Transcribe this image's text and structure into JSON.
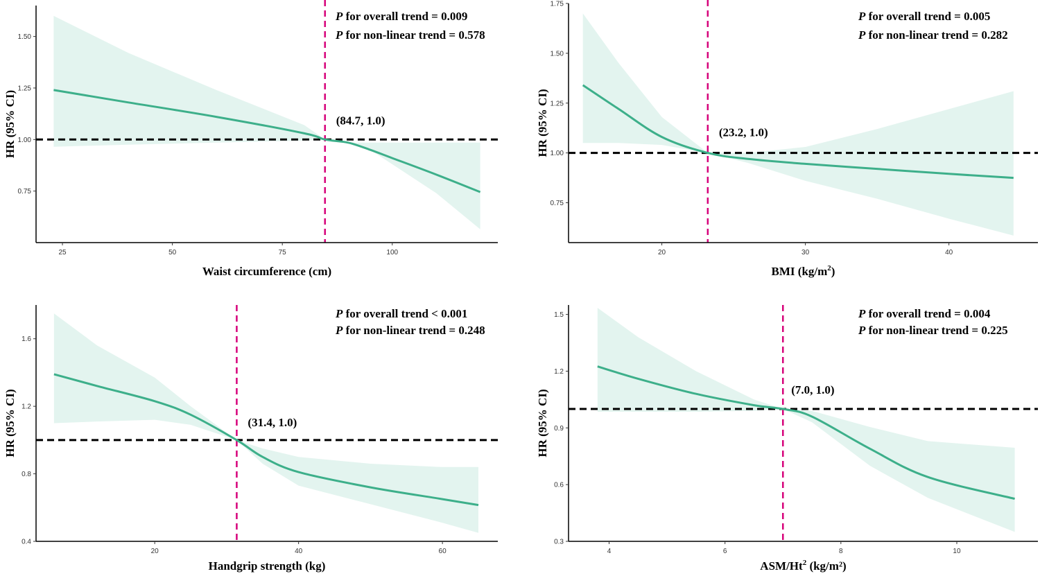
{
  "colors": {
    "curve": "#3daf8a",
    "band": "#e3f4ef",
    "reference": "#000000",
    "knot": "#d6007a"
  },
  "chart_data": [
    {
      "type": "line",
      "xlabel": "Waist circumference (cm)",
      "xsup": "",
      "xsuffix": "",
      "ylabel": "HR (95% CI)",
      "xlim": [
        19,
        124
      ],
      "ylim": [
        0.5,
        1.65
      ],
      "xticks": [
        25,
        50,
        75,
        100
      ],
      "yticks": [
        0.75,
        1.0,
        1.25,
        1.5
      ],
      "yticklabels": [
        "0.75",
        "1.00",
        "1.25",
        "1.50"
      ],
      "reference_y": 1.0,
      "knot_x": 84.7,
      "annotation": "(84.7, 1.0)",
      "p_overall": "for overall trend = 0.009",
      "p_nonlinear": "for non-linear trend = 0.578",
      "series": [
        {
          "name": "HR",
          "x": [
            23,
            40,
            60,
            80,
            84.7,
            90,
            95,
            100,
            110,
            120
          ],
          "values": [
            1.24,
            1.18,
            1.11,
            1.03,
            1.0,
            0.985,
            0.95,
            0.91,
            0.83,
            0.745
          ]
        },
        {
          "name": "Lower CI",
          "x": [
            23,
            40,
            60,
            80,
            84.7,
            90,
            95,
            100,
            110,
            120
          ],
          "values": [
            0.965,
            0.975,
            0.985,
            0.995,
            1.0,
            0.985,
            0.95,
            0.88,
            0.74,
            0.565
          ]
        },
        {
          "name": "Upper CI",
          "x": [
            23,
            40,
            60,
            80,
            84.7,
            90,
            95,
            100,
            110,
            120
          ],
          "values": [
            1.6,
            1.42,
            1.24,
            1.07,
            1.0,
            0.985,
            0.985,
            0.985,
            0.985,
            0.985
          ]
        }
      ]
    },
    {
      "type": "line",
      "xlabel": "BMI (kg/m",
      "xsup": "2",
      "xsuffix": ")",
      "ylabel": "HR (95% CI)",
      "xlim": [
        13.5,
        46.2
      ],
      "ylim": [
        0.55,
        1.75
      ],
      "xticks": [
        20,
        30,
        40
      ],
      "yticks": [
        0.75,
        1.0,
        1.25,
        1.5,
        1.75
      ],
      "yticklabels": [
        "0.75",
        "1.00",
        "1.25",
        "1.50",
        "1.75"
      ],
      "reference_y": 1.0,
      "knot_x": 23.2,
      "annotation": "(23.2, 1.0)",
      "p_overall": "for overall trend = 0.005",
      "p_nonlinear": "for non-linear trend = 0.282",
      "series": [
        {
          "name": "HR",
          "x": [
            14.5,
            17,
            20,
            23.2,
            26,
            30,
            35,
            40,
            44.5
          ],
          "values": [
            1.34,
            1.22,
            1.08,
            1.0,
            0.97,
            0.945,
            0.92,
            0.895,
            0.875
          ]
        },
        {
          "name": "Lower CI",
          "x": [
            14.5,
            17,
            20,
            23.2,
            26,
            30,
            35,
            40,
            44.5
          ],
          "values": [
            1.05,
            1.05,
            1.04,
            1.0,
            0.95,
            0.86,
            0.77,
            0.67,
            0.585
          ]
        },
        {
          "name": "Upper CI",
          "x": [
            14.5,
            17,
            20,
            23.2,
            26,
            30,
            35,
            40,
            44.5
          ],
          "values": [
            1.7,
            1.45,
            1.18,
            1.0,
            1.0,
            1.03,
            1.12,
            1.22,
            1.31
          ]
        }
      ]
    },
    {
      "type": "line",
      "xlabel": "Handgrip strength (kg)",
      "xsup": "",
      "xsuffix": "",
      "ylabel": "HR (95% CI)",
      "xlim": [
        3.5,
        67.7
      ],
      "ylim": [
        0.4,
        1.8
      ],
      "xticks": [
        20,
        40,
        60
      ],
      "yticks": [
        0.4,
        0.8,
        1.2,
        1.6
      ],
      "yticklabels": [
        "0.4",
        "0.8",
        "1.2",
        "1.6"
      ],
      "reference_y": 1.0,
      "knot_x": 31.4,
      "annotation": "(31.4, 1.0)",
      "p_overall": "for overall trend < 0.001",
      "p_nonlinear": "for non-linear trend = 0.248",
      "series": [
        {
          "name": "HR",
          "x": [
            6,
            12,
            20,
            25,
            31.4,
            35,
            40,
            50,
            60,
            65
          ],
          "values": [
            1.39,
            1.32,
            1.23,
            1.15,
            1.0,
            0.9,
            0.81,
            0.72,
            0.65,
            0.615
          ]
        },
        {
          "name": "Lower CI",
          "x": [
            6,
            12,
            20,
            25,
            31.4,
            35,
            40,
            50,
            60,
            65
          ],
          "values": [
            1.1,
            1.11,
            1.12,
            1.09,
            1.0,
            0.86,
            0.73,
            0.62,
            0.51,
            0.45
          ]
        },
        {
          "name": "Upper CI",
          "x": [
            6,
            12,
            20,
            25,
            31.4,
            35,
            40,
            50,
            60,
            65
          ],
          "values": [
            1.75,
            1.56,
            1.37,
            1.2,
            1.0,
            0.95,
            0.9,
            0.86,
            0.84,
            0.84
          ]
        }
      ]
    },
    {
      "type": "line",
      "xlabel": "ASM/Ht",
      "xsup": "2",
      "xsuffix": " (kg/m²)",
      "ylabel": "HR (95% CI)",
      "xlim": [
        3.3,
        11.4
      ],
      "ylim": [
        0.3,
        1.55
      ],
      "xticks": [
        4,
        6,
        8,
        10
      ],
      "yticks": [
        0.3,
        0.6,
        0.9,
        1.2,
        1.5
      ],
      "yticklabels": [
        "0.3",
        "0.6",
        "0.9",
        "1.2",
        "1.5"
      ],
      "reference_y": 1.0,
      "knot_x": 7.0,
      "annotation": "(7.0, 1.0)",
      "p_overall": "for overall trend = 0.004",
      "p_nonlinear": "for non-linear trend = 0.225",
      "series": [
        {
          "name": "HR",
          "x": [
            3.8,
            4.5,
            5.5,
            6.5,
            7.0,
            7.5,
            8.5,
            9.5,
            11
          ],
          "values": [
            1.225,
            1.16,
            1.08,
            1.02,
            1.0,
            0.96,
            0.79,
            0.64,
            0.525
          ]
        },
        {
          "name": "Lower CI",
          "x": [
            3.8,
            4.5,
            5.5,
            6.5,
            7.0,
            7.5,
            8.5,
            9.5,
            11
          ],
          "values": [
            0.985,
            0.985,
            0.985,
            0.99,
            1.0,
            0.93,
            0.7,
            0.53,
            0.35
          ]
        },
        {
          "name": "Upper CI",
          "x": [
            3.8,
            4.5,
            5.5,
            6.5,
            7.0,
            7.5,
            8.5,
            9.5,
            11
          ],
          "values": [
            1.535,
            1.38,
            1.2,
            1.05,
            1.0,
            0.99,
            0.905,
            0.83,
            0.795
          ]
        }
      ]
    }
  ]
}
